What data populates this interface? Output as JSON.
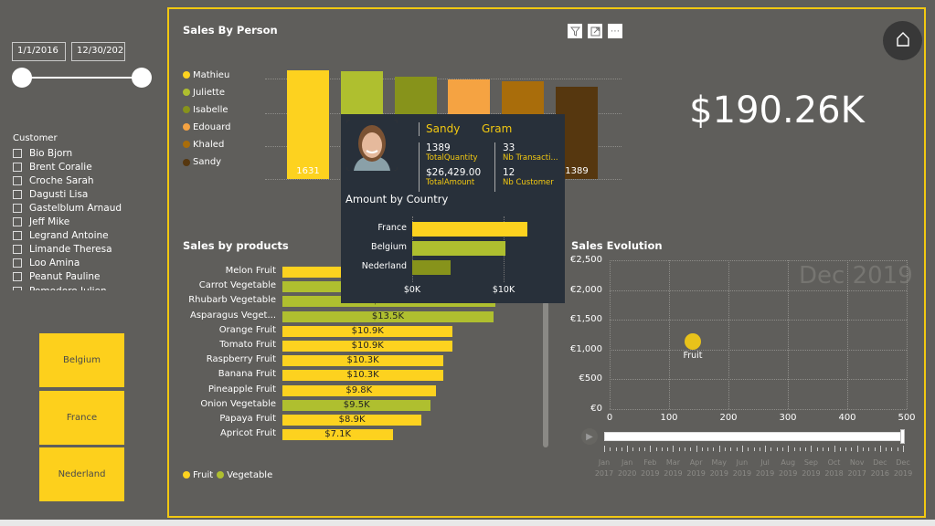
{
  "date_slicer": {
    "start": "1/1/2016",
    "end": "12/30/202",
    "range_fraction": [
      0,
      1
    ]
  },
  "customer_slicer": {
    "title": "Customer",
    "items": [
      "Bio Bjorn",
      "Brent Coralie",
      "Croche Sarah",
      "Dagusti Lisa",
      "Gastelblum Arnaud",
      "Jeff Mike",
      "Legrand Antoine",
      "Limande Theresa",
      "Loo Amina",
      "Peanut Pauline",
      "Pomodoro Julien"
    ]
  },
  "country_slicer": {
    "items": [
      "Belgium",
      "France",
      "Nederland"
    ]
  },
  "sales_by_person": {
    "title": "Sales By Person",
    "icons": [
      "filter-icon",
      "focus-mode-icon",
      "more-options-icon"
    ],
    "chart_data": {
      "type": "bar",
      "categories": [
        "Mathieu",
        "Juliette",
        "Isabelle",
        "Edouard",
        "Khaled",
        "Sandy"
      ],
      "values": [
        1631,
        1620,
        1540,
        1500,
        1470,
        1389
      ],
      "data_labels": [
        "1631",
        "",
        "",
        "",
        "",
        "1389"
      ],
      "colors": [
        "#fdd21f",
        "#afbf2f",
        "#87931b",
        "#f5a342",
        "#a96d0b",
        "#56370f"
      ],
      "grid": true,
      "legend": "left"
    }
  },
  "kpi": {
    "value": "$190.26K"
  },
  "tooltip": {
    "first_name": "Sandy",
    "last_name": "Gram",
    "metrics": [
      {
        "value": "1389",
        "label": "TotalQuantity"
      },
      {
        "value": "33",
        "label": "Nb Transacti..."
      },
      {
        "value": "$26,429.00",
        "label": "TotalAmount"
      },
      {
        "value": "12",
        "label": "Nb Customer"
      }
    ],
    "chart_title": "Amount by Country",
    "chart_data": {
      "type": "bar",
      "categories": [
        "France",
        "Belgium",
        "Nederland"
      ],
      "values": [
        12600,
        10200,
        4200
      ],
      "colors": [
        "#fdd21f",
        "#afbf2f",
        "#87931b"
      ],
      "ticks": [
        "$0K",
        "$10K"
      ]
    }
  },
  "sales_by_products": {
    "title": "Sales by products",
    "chart_data": {
      "type": "bar",
      "categories": [
        "Melon Fruit",
        "Carrot Vegetable",
        "Rhubarb Vegetable",
        "Asparagus Veget...",
        "Orange Fruit",
        "Tomato Fruit",
        "Raspberry Fruit",
        "Banana Fruit",
        "Pineapple Fruit",
        "Onion Vegetable",
        "Papaya Fruit",
        "Apricot Fruit"
      ],
      "values": [
        14.5,
        13.9,
        13.6,
        13.5,
        10.9,
        10.9,
        10.3,
        10.3,
        9.8,
        9.5,
        8.9,
        7.1
      ],
      "series_type": [
        "Fruit",
        "Vegetable",
        "Vegetable",
        "Vegetable",
        "Fruit",
        "Fruit",
        "Fruit",
        "Fruit",
        "Fruit",
        "Vegetable",
        "Fruit",
        "Fruit"
      ],
      "data_labels": [
        "",
        "",
        "$13.6K",
        "$13.5K",
        "$10.9K",
        "$10.9K",
        "$10.3K",
        "$10.3K",
        "$9.8K",
        "$9.5K",
        "$8.9K",
        "$7.1K"
      ],
      "unit": "$K"
    },
    "legend": [
      {
        "name": "Fruit",
        "color": "#fdd21f"
      },
      {
        "name": "Vegetable",
        "color": "#afbf2f"
      }
    ]
  },
  "sales_evolution": {
    "title": "Sales Evolution",
    "chart_data": {
      "type": "scatter",
      "points": [
        {
          "x": 140,
          "y": 1130,
          "label": "Fruit",
          "color": "#e8c21a"
        }
      ],
      "xlim": [
        0,
        500
      ],
      "ylim": [
        0,
        2500
      ],
      "xticks": [
        "0",
        "100",
        "200",
        "300",
        "400",
        "500"
      ],
      "yticks": [
        "€0",
        "€500",
        "€1,000",
        "€1,500",
        "€2,000",
        "€2,500"
      ],
      "grid": true,
      "watermark": "Dec 2019"
    },
    "play_axis": {
      "progress": 1,
      "labels": [
        [
          "Jan",
          "2017"
        ],
        [
          "Jan",
          "2020"
        ],
        [
          "Feb",
          "2019"
        ],
        [
          "Mar",
          "2019"
        ],
        [
          "Apr",
          "2019"
        ],
        [
          "May",
          "2019"
        ],
        [
          "Jun",
          "2019"
        ],
        [
          "Jul",
          "2019"
        ],
        [
          "Aug",
          "2019"
        ],
        [
          "Sep",
          "2019"
        ],
        [
          "Oct",
          "2018"
        ],
        [
          "Nov",
          "2017"
        ],
        [
          "Dec",
          "2016"
        ],
        [
          "Dec",
          "2019"
        ]
      ]
    }
  }
}
